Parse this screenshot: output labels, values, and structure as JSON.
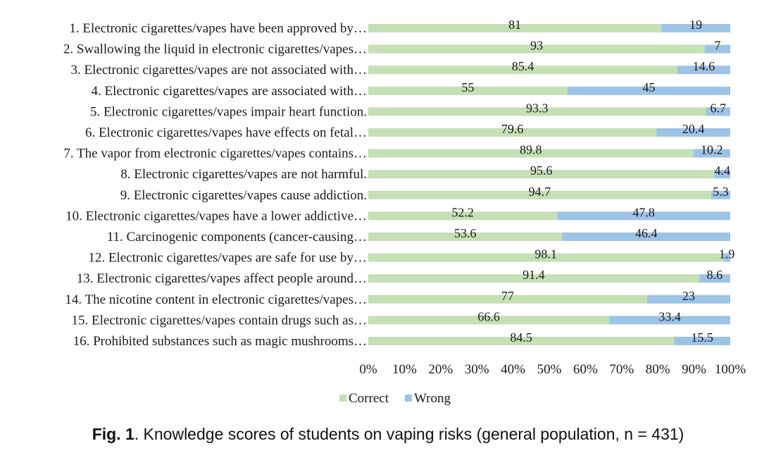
{
  "chart_data": {
    "type": "bar",
    "orientation": "horizontal",
    "stacked": true,
    "percent_stacked": true,
    "categories": [
      "1. Electronic cigarettes/vapes have been approved by…",
      "2. Swallowing the liquid in electronic cigarettes/vapes…",
      "3. Electronic cigarettes/vapes are not associated with…",
      "4. Electronic cigarettes/vapes are associated with…",
      "5. Electronic cigarettes/vapes impair heart function.",
      "6. Electronic cigarettes/vapes have effects on fetal…",
      "7. The vapor from electronic cigarettes/vapes contains…",
      "8. Electronic cigarettes/vapes are not harmful.",
      "9. Electronic cigarettes/vapes cause addiction.",
      "10. Electronic cigarettes/vapes have a lower addictive…",
      "11. Carcinogenic components (cancer-causing…",
      "12. Electronic cigarettes/vapes are safe for use by…",
      "13. Electronic cigarettes/vapes affect people around…",
      "14. The nicotine content in electronic cigarettes/vapes…",
      "15. Electronic cigarettes/vapes contain drugs such as…",
      "16. Prohibited substances such as magic mushrooms…"
    ],
    "series": [
      {
        "name": "Correct",
        "color": "#c5e0b4",
        "values": [
          81,
          93,
          85.4,
          55,
          93.3,
          79.6,
          89.8,
          95.6,
          94.7,
          52.2,
          53.6,
          98.1,
          91.4,
          77,
          66.6,
          84.5
        ],
        "labels": [
          "81",
          "93",
          "85.4",
          "55",
          "93.3",
          "79.6",
          "89.8",
          "95.6",
          "94.7",
          "52.2",
          "53.6",
          "98.1",
          "91.4",
          "77",
          "66.6",
          "84.5"
        ]
      },
      {
        "name": "Wrong",
        "color": "#9dc3e6",
        "values": [
          19,
          7,
          14.6,
          45,
          6.7,
          20.4,
          10.2,
          4.4,
          5.3,
          47.8,
          46.4,
          1.9,
          8.6,
          23,
          33.4,
          15.5
        ],
        "labels": [
          "19",
          "7",
          "14.6",
          "45",
          "6.7",
          "20.4",
          "10.2",
          "4.4",
          "5.3",
          "47.8",
          "46.4",
          "1.9",
          "8.6",
          "23",
          "33.4",
          "15.5"
        ]
      }
    ],
    "xaxis": {
      "range": [
        0,
        100
      ],
      "ticks": [
        0,
        10,
        20,
        30,
        40,
        50,
        60,
        70,
        80,
        90,
        100
      ],
      "tick_labels": [
        "0%",
        "10%",
        "20%",
        "30%",
        "40%",
        "50%",
        "60%",
        "70%",
        "80%",
        "90%",
        "100%"
      ]
    },
    "grid": false,
    "legend_position": "bottom-center",
    "title": ""
  },
  "caption": {
    "label": "Fig. 1",
    "text": ". Knowledge scores of students on vaping risks (general population, n = 431)"
  }
}
